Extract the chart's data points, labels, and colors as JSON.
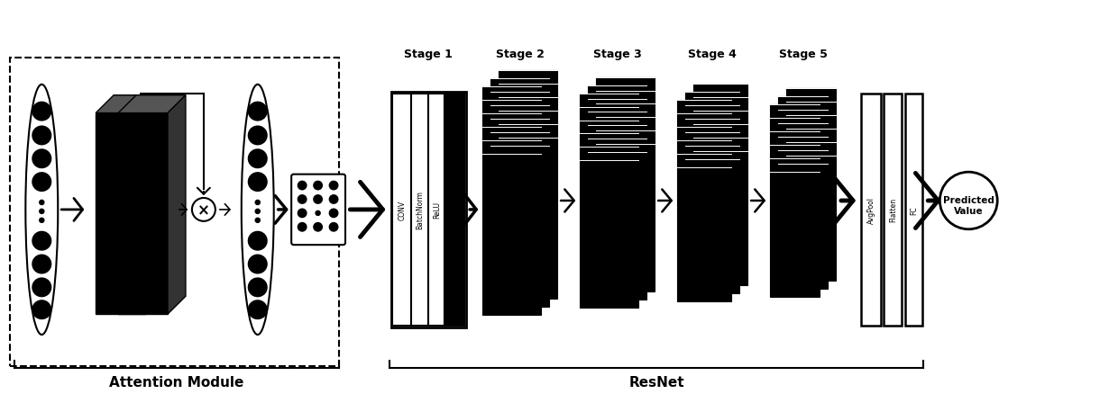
{
  "bg_color": "#ffffff",
  "attention_label": "Attention Module",
  "resnet_label": "ResNet",
  "stage_labels": [
    "Stage 1",
    "Stage 2",
    "Stage 3",
    "Stage 4",
    "Stage 5"
  ],
  "layer_labels": [
    "CONV",
    "BatchNorm",
    "ReLU"
  ],
  "fc_labels": [
    "AvgPool",
    "Flatten",
    "FC"
  ],
  "predicted_label": "Predicted\nValue",
  "black": "#000000",
  "white": "#ffffff",
  "dark_gray": "#333333",
  "mid_gray": "#555555"
}
